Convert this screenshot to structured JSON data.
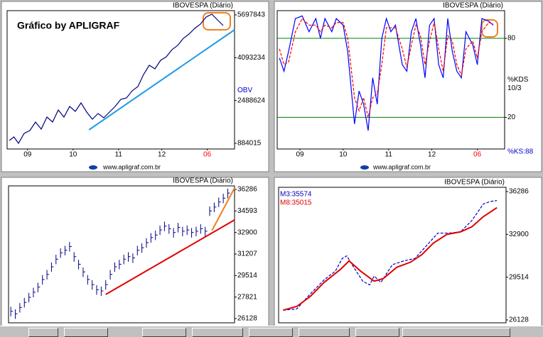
{
  "chart_data": [
    {
      "type": "line",
      "title": "IBOVESPA (Diário)",
      "annotation": "Gráfico by APLIGRAF",
      "axis_label": "OBV",
      "axis_label_color": "#0000cc",
      "footer": "www.apligraf.com.br",
      "ylim": [
        670000,
        5857000
      ],
      "yticks": [
        884015,
        2488624,
        4093234,
        5697843
      ],
      "xlim": [
        0,
        100
      ],
      "xticks": [
        {
          "value": 9,
          "label": "09"
        },
        {
          "value": 29,
          "label": "10"
        },
        {
          "value": 49,
          "label": "11"
        },
        {
          "value": 68,
          "label": "12"
        },
        {
          "value": 88,
          "label": "06"
        }
      ],
      "last_tick_color": "#ff0000",
      "grid": false,
      "series": [
        {
          "color": "#000080",
          "dash": false,
          "x": [
            1,
            3,
            5,
            7.5,
            10,
            12.5,
            15,
            17.5,
            20,
            22.5,
            25,
            27.5,
            30,
            32.5,
            35,
            37.5,
            40,
            42.5,
            45,
            47.5,
            50,
            52.5,
            55,
            57.5,
            60,
            62.5,
            65,
            67.5,
            70,
            72.5,
            75,
            77.5,
            80,
            82.5,
            85,
            87.5,
            90,
            92.5,
            95
          ],
          "values": [
            989200,
            1122200,
            882800,
            1255200,
            1361600,
            1680800,
            1414800,
            1867000,
            1680800,
            2133000,
            1867000,
            2266000,
            2079800,
            2399000,
            2053200,
            1787200,
            2000000,
            1840400,
            2053200,
            2266000,
            2532000,
            2585200,
            2851200,
            3010800,
            3463000,
            3808800,
            3675800,
            3995000,
            4128000,
            4394000,
            4553600,
            4819600,
            4979200,
            5192000,
            5351600,
            5617600,
            5724000,
            5511200,
            5298400
          ]
        },
        {
          "color": "#1e9be6",
          "dash": false,
          "x": [
            36,
            100
          ],
          "values": [
            1388000,
            5138800
          ]
        }
      ]
    },
    {
      "type": "line",
      "title": "IBOVESPA (Diário)",
      "axis_label": "%KDS",
      "axis_sublabel": "10/3",
      "footnote": "%KS:88",
      "footnote_color": "#0000cc",
      "footer": "www.apligraf.com.br",
      "ylim": [
        -4,
        101
      ],
      "yticks": [
        20,
        80
      ],
      "grid": true,
      "grid_color": "#008000",
      "xlim": [
        0,
        100
      ],
      "xticks": [
        {
          "value": 10,
          "label": "09"
        },
        {
          "value": 29,
          "label": "10"
        },
        {
          "value": 49,
          "label": "11"
        },
        {
          "value": 68,
          "label": "12"
        },
        {
          "value": 88,
          "label": "06"
        }
      ],
      "last_tick_color": "#ff0000",
      "series": [
        {
          "color": "#0000ff",
          "dash": false,
          "x": [
            1,
            3,
            5,
            8,
            11,
            14,
            17,
            19,
            21,
            24,
            26,
            29,
            31,
            34,
            36,
            38,
            40,
            42,
            44,
            46,
            48,
            50,
            52,
            55,
            57,
            59,
            61,
            63,
            65,
            67,
            69,
            71,
            73,
            75,
            77,
            79,
            81,
            83,
            86,
            88,
            90,
            93,
            95
          ],
          "values": [
            65,
            55,
            70,
            95,
            97,
            85,
            95,
            80,
            95,
            85,
            95,
            90,
            70,
            15,
            40,
            30,
            10,
            50,
            30,
            80,
            95,
            85,
            90,
            60,
            55,
            85,
            95,
            75,
            50,
            90,
            95,
            60,
            50,
            95,
            70,
            55,
            50,
            85,
            75,
            60,
            95,
            93,
            90
          ]
        },
        {
          "color": "#ff0000",
          "dash": true,
          "x": [
            1,
            3,
            5,
            8,
            11,
            14,
            17,
            19,
            21,
            24,
            26,
            29,
            31,
            34,
            36,
            38,
            40,
            42,
            44,
            46,
            48,
            50,
            52,
            55,
            57,
            59,
            61,
            63,
            65,
            67,
            69,
            71,
            73,
            75,
            77,
            79,
            81,
            83,
            86,
            88,
            90,
            93,
            95
          ],
          "values": [
            72,
            60,
            62,
            85,
            95,
            90,
            90,
            85,
            90,
            88,
            92,
            92,
            80,
            35,
            25,
            35,
            20,
            35,
            38,
            60,
            88,
            88,
            88,
            72,
            58,
            75,
            90,
            82,
            60,
            78,
            92,
            72,
            55,
            82,
            78,
            60,
            52,
            72,
            78,
            65,
            85,
            92,
            91
          ]
        }
      ]
    },
    {
      "type": "ohlc",
      "title": "IBOVESPA (Diário)",
      "color": "#000080",
      "ylim": [
        25793,
        36565
      ],
      "yticks": [
        26128,
        27821,
        29514,
        31207,
        32900,
        34593,
        36286
      ],
      "grid": false,
      "xlim": [
        0,
        100
      ],
      "x": [
        1,
        3,
        5,
        7,
        9,
        11,
        13,
        15,
        17,
        19,
        21,
        23,
        25,
        27,
        29,
        31,
        33,
        35,
        37,
        39,
        41,
        43,
        45,
        47,
        49,
        51,
        53,
        55,
        57,
        59,
        61,
        63,
        65,
        67,
        69,
        71,
        73,
        75,
        77,
        79,
        81,
        83,
        85,
        87,
        89,
        91,
        93,
        95,
        97
      ],
      "high": [
        27050,
        26850,
        27350,
        27750,
        28150,
        28550,
        28950,
        29550,
        29950,
        30550,
        31150,
        31650,
        31850,
        32150,
        31350,
        30750,
        30150,
        29550,
        29150,
        28750,
        28650,
        29150,
        29950,
        30550,
        30750,
        31150,
        31350,
        31250,
        31850,
        32050,
        32450,
        32850,
        33050,
        33450,
        33750,
        33550,
        33250,
        33650,
        33350,
        33450,
        33250,
        33350,
        33550,
        33350,
        34950,
        35250,
        35650,
        35950,
        36350
      ],
      "low": [
        26300,
        26100,
        26600,
        27000,
        27400,
        27800,
        28200,
        28800,
        29200,
        29800,
        30400,
        30900,
        31100,
        31400,
        30600,
        30000,
        29400,
        28800,
        28400,
        28000,
        27900,
        28400,
        29200,
        29800,
        30000,
        30400,
        30600,
        30500,
        31100,
        31300,
        31700,
        32100,
        32300,
        32700,
        33000,
        32800,
        32500,
        32900,
        32600,
        32700,
        32500,
        32600,
        32800,
        32600,
        34200,
        34500,
        34900,
        35200,
        35600
      ],
      "close": [
        26700,
        26500,
        27000,
        27400,
        27800,
        28200,
        28600,
        29200,
        29600,
        30200,
        30800,
        31300,
        31500,
        31800,
        31000,
        30400,
        29800,
        29200,
        28800,
        28400,
        28300,
        28800,
        29600,
        30200,
        30400,
        30800,
        31000,
        30900,
        31500,
        31700,
        32100,
        32500,
        32700,
        33100,
        33400,
        33200,
        32900,
        33300,
        33000,
        33100,
        32900,
        33000,
        33200,
        33000,
        34600,
        34900,
        35300,
        35600,
        36000
      ],
      "series": [
        {
          "color": "#e00000",
          "dash": false,
          "x": [
            43,
            100
          ],
          "values": [
            28028,
            33887
          ]
        },
        {
          "color": "#f08020",
          "dash": false,
          "x": [
            90,
            100
          ],
          "values": [
            33050,
            36398
          ]
        }
      ]
    },
    {
      "type": "line",
      "title": "IBOVESPA (Diário)",
      "ylim": [
        25902,
        36624
      ],
      "yticks": [
        26128,
        29514,
        32900,
        36286
      ],
      "grid": false,
      "xlim": [
        0,
        100
      ],
      "series": [
        {
          "name": "M3:35574",
          "color": "#0000c0",
          "dash": true,
          "x": [
            2,
            8,
            14,
            20,
            25,
            28,
            30,
            33,
            37,
            40,
            42,
            45,
            50,
            55,
            60,
            65,
            70,
            75,
            80,
            85,
            90,
            93,
            96
          ],
          "values": [
            26900,
            27000,
            28200,
            29300,
            30000,
            31000,
            31200,
            30300,
            29200,
            28900,
            29600,
            29100,
            30500,
            30800,
            31000,
            32000,
            33000,
            33000,
            33100,
            34000,
            35300,
            35500,
            35574
          ]
        },
        {
          "name": "M8:35015",
          "color": "#e00000",
          "dash": false,
          "x": [
            2,
            8,
            14,
            20,
            27,
            31,
            36,
            42,
            46,
            52,
            58,
            63,
            68,
            74,
            80,
            85,
            90,
            96
          ],
          "values": [
            26900,
            27200,
            28000,
            29100,
            30100,
            30800,
            30000,
            29200,
            29400,
            30300,
            30700,
            31300,
            32200,
            32900,
            33100,
            33500,
            34300,
            35015
          ]
        }
      ]
    }
  ]
}
